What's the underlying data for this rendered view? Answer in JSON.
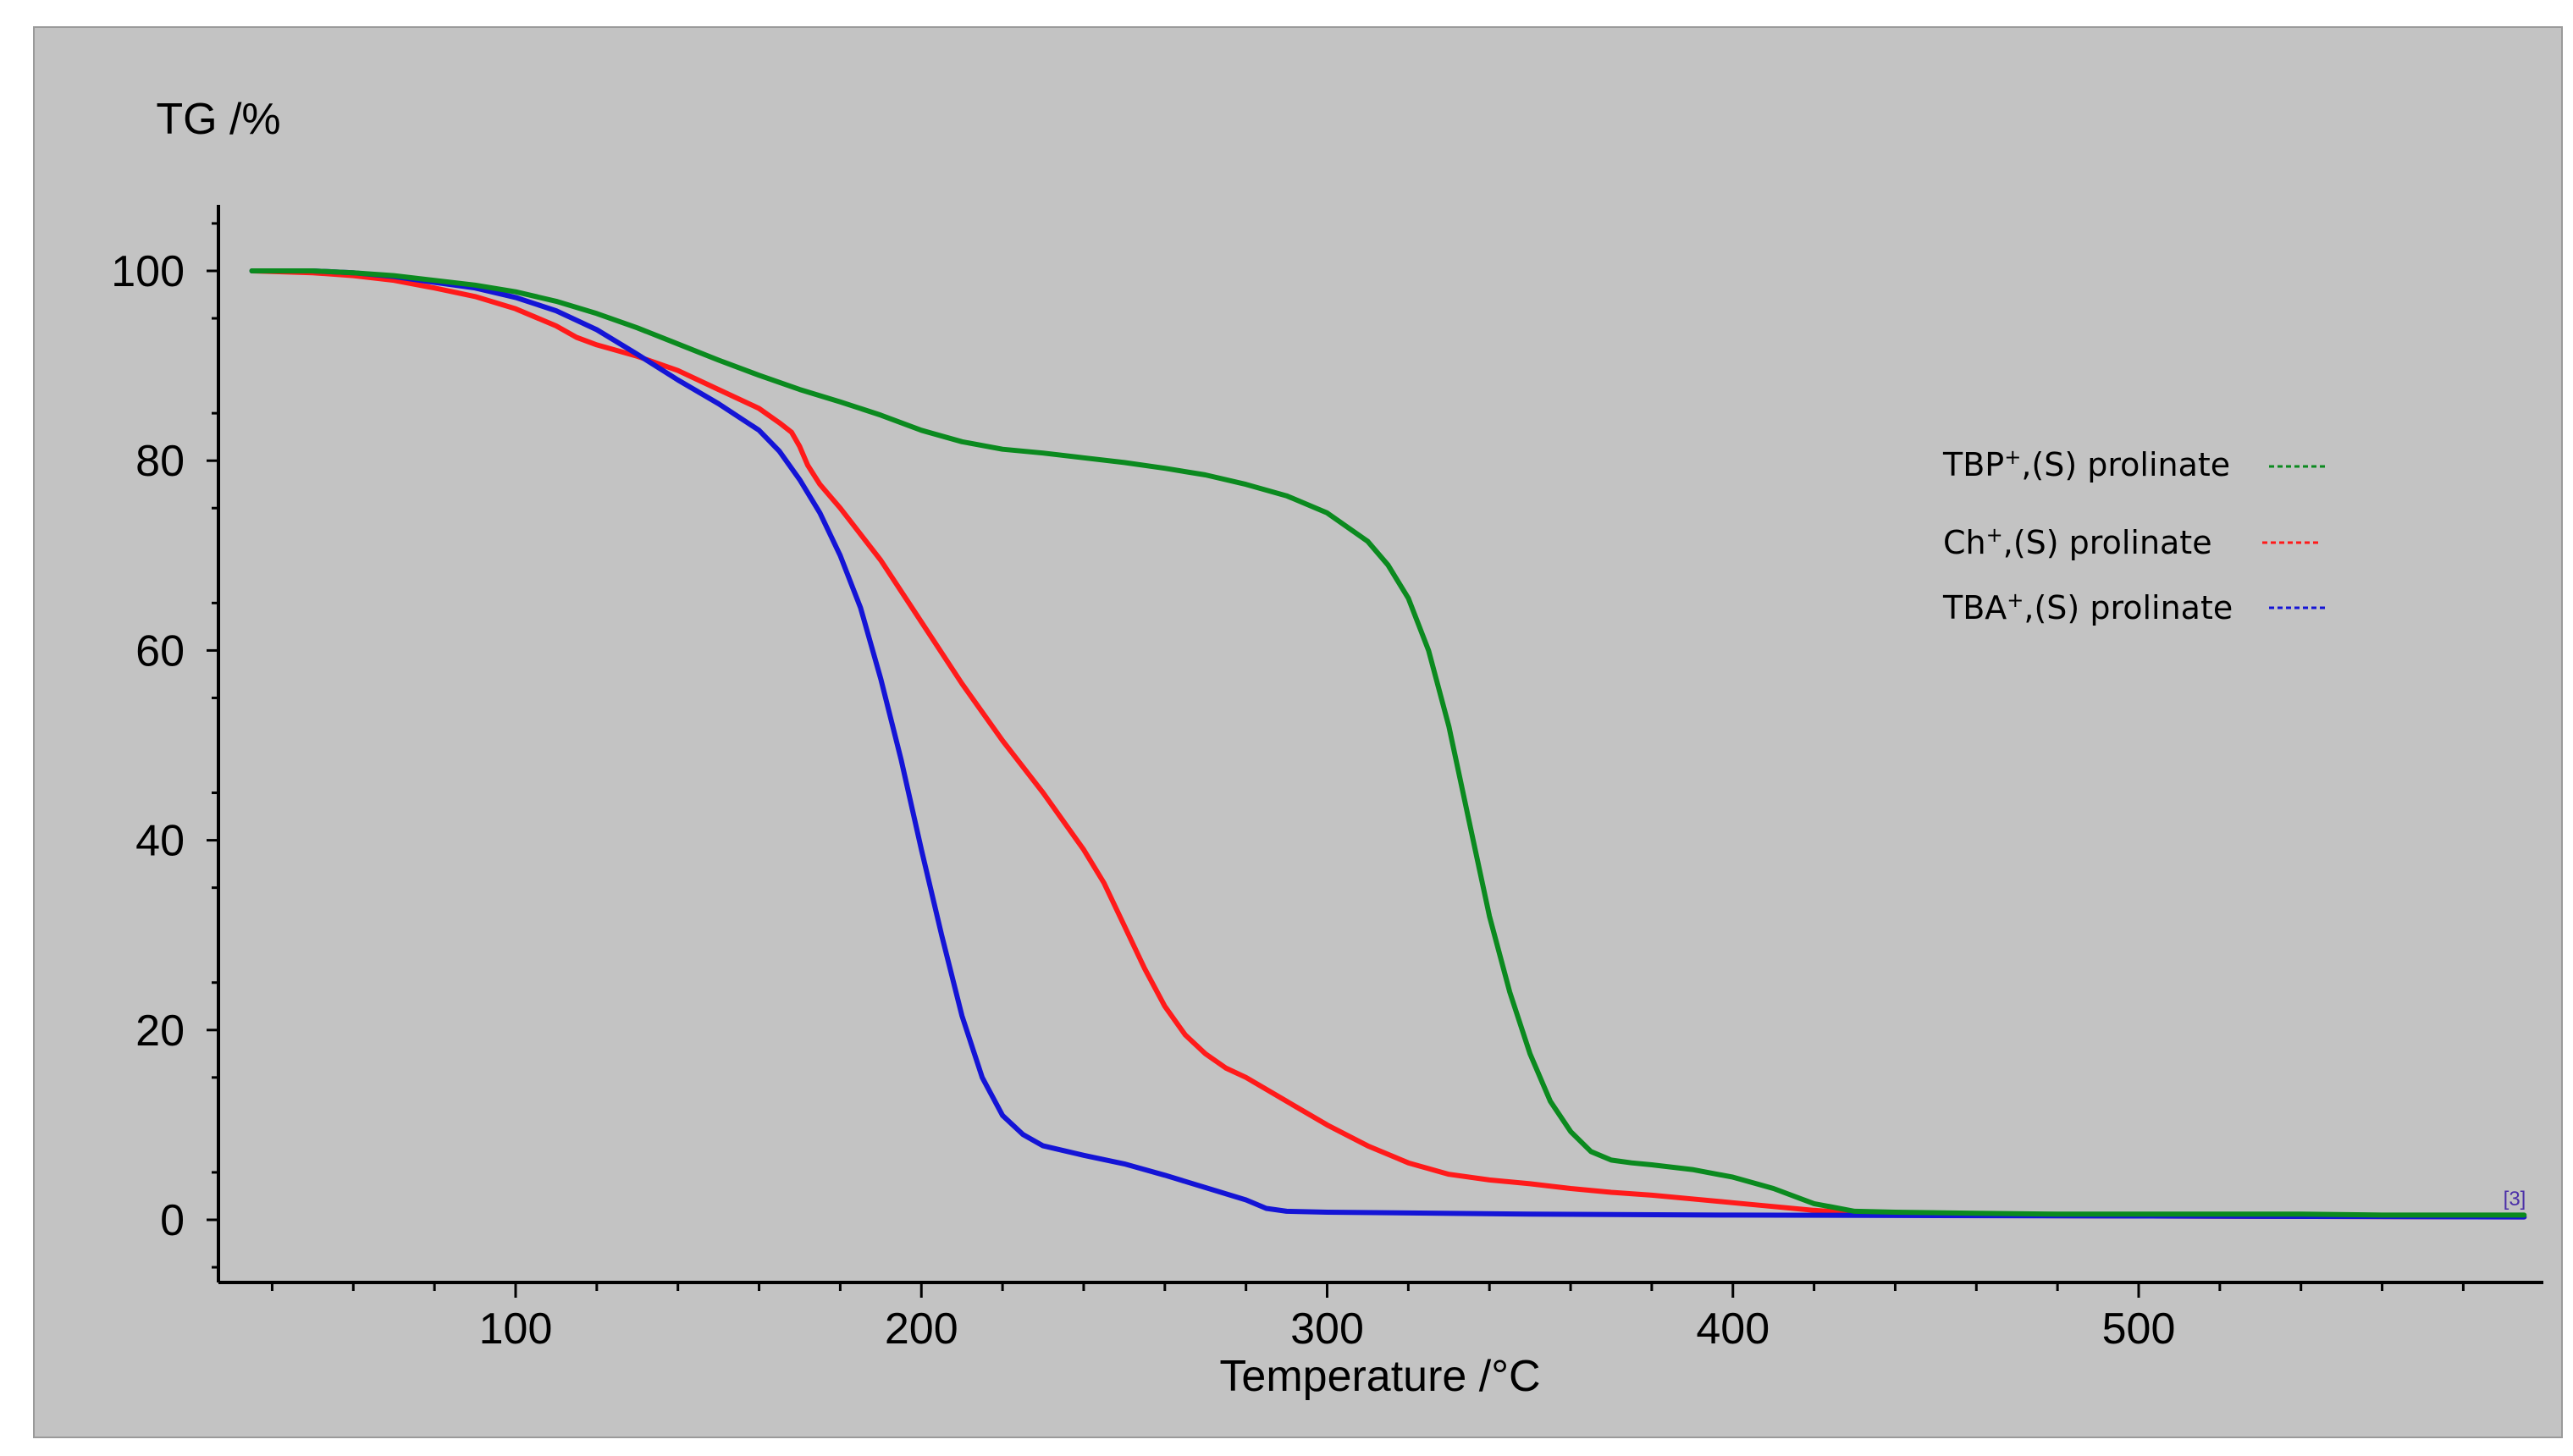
{
  "chart_data": {
    "type": "line",
    "title": "",
    "ylabel": "TG /%",
    "xlabel": "Temperature /°C",
    "xlim": [
      30,
      600
    ],
    "ylim": [
      -7,
      107
    ],
    "xticks": [
      100,
      200,
      300,
      400,
      500
    ],
    "yticks": [
      0,
      20,
      40,
      60,
      80,
      100
    ],
    "grid": false,
    "legend_position": "right",
    "background_color": "#c3c3c3",
    "corner_marker": "[3]",
    "corner_marker_color": "#4b2fa8",
    "series": [
      {
        "name": "TBP+,(S) prolinate",
        "legend_base": "TBP",
        "legend_suffix": ",(S) prolinate",
        "color": "#0b8a1f",
        "x": [
          35,
          50,
          60,
          70,
          80,
          90,
          100,
          110,
          120,
          130,
          140,
          150,
          160,
          170,
          180,
          190,
          200,
          210,
          220,
          230,
          240,
          250,
          260,
          270,
          280,
          290,
          300,
          310,
          315,
          320,
          325,
          330,
          335,
          340,
          345,
          350,
          355,
          360,
          365,
          370,
          375,
          380,
          390,
          400,
          410,
          420,
          430,
          440,
          460,
          480,
          500,
          520,
          540,
          560,
          580,
          595
        ],
        "y": [
          100,
          100,
          99.8,
          99.5,
          99,
          98.5,
          97.8,
          96.8,
          95.5,
          94,
          92.3,
          90.6,
          89,
          87.5,
          86.2,
          84.8,
          83.2,
          82,
          81.2,
          80.8,
          80.3,
          79.8,
          79.2,
          78.5,
          77.5,
          76.3,
          74.5,
          71.5,
          69,
          65.5,
          60,
          52,
          42,
          32,
          24,
          17.5,
          12.5,
          9.3,
          7.2,
          6.3,
          6.0,
          5.8,
          5.3,
          4.5,
          3.3,
          1.7,
          0.9,
          0.8,
          0.7,
          0.6,
          0.6,
          0.6,
          0.6,
          0.5,
          0.5,
          0.5
        ]
      },
      {
        "name": "Ch+,(S) prolinate",
        "legend_base": "Ch",
        "legend_suffix": ",(S) prolinate",
        "color": "#ff1a1a",
        "x": [
          35,
          50,
          60,
          70,
          80,
          90,
          100,
          110,
          115,
          120,
          130,
          140,
          150,
          160,
          165,
          168,
          170,
          172,
          175,
          180,
          190,
          200,
          210,
          220,
          230,
          240,
          245,
          250,
          255,
          260,
          265,
          270,
          275,
          280,
          290,
          300,
          310,
          320,
          330,
          340,
          350,
          360,
          370,
          380,
          390,
          400,
          410,
          420,
          430,
          450,
          500,
          595
        ],
        "y": [
          100,
          99.8,
          99.5,
          99.0,
          98.2,
          97.3,
          96,
          94.2,
          93,
          92.2,
          91,
          89.5,
          87.5,
          85.5,
          84,
          83,
          81.5,
          79.5,
          77.5,
          75,
          69.5,
          63,
          56.5,
          50.5,
          45,
          39,
          35.5,
          31,
          26.5,
          22.5,
          19.5,
          17.5,
          16,
          15,
          12.5,
          10,
          7.8,
          6,
          4.8,
          4.2,
          3.8,
          3.3,
          2.9,
          2.6,
          2.2,
          1.8,
          1.4,
          1.0,
          0.7,
          0.5,
          0.4,
          0.3
        ]
      },
      {
        "name": "TBA+,(S) prolinate",
        "legend_base": "TBA",
        "legend_suffix": ",(S) prolinate",
        "color": "#1414d6",
        "x": [
          35,
          50,
          60,
          70,
          80,
          90,
          100,
          110,
          120,
          130,
          140,
          150,
          160,
          165,
          170,
          175,
          180,
          185,
          190,
          195,
          200,
          205,
          210,
          215,
          220,
          225,
          230,
          235,
          240,
          250,
          260,
          270,
          280,
          285,
          290,
          300,
          350,
          400,
          500,
          595
        ],
        "y": [
          100,
          100,
          99.8,
          99.4,
          98.8,
          98.2,
          97.2,
          95.8,
          93.8,
          91.2,
          88.5,
          86,
          83.2,
          81,
          78,
          74.5,
          70,
          64.5,
          57,
          48.5,
          39,
          30,
          21.5,
          15,
          11,
          9,
          7.8,
          7.3,
          6.8,
          5.9,
          4.7,
          3.4,
          2.1,
          1.2,
          0.9,
          0.8,
          0.6,
          0.5,
          0.4,
          0.3
        ]
      }
    ]
  }
}
